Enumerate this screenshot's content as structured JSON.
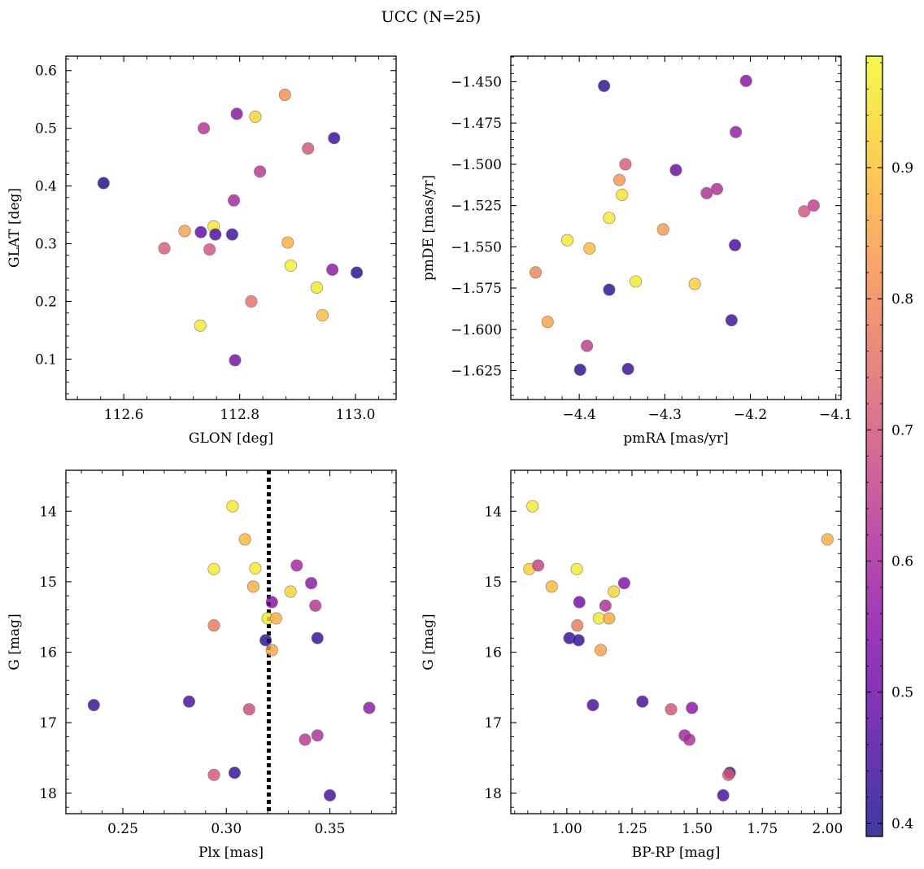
{
  "figure": {
    "title": "UCC (N=25)"
  },
  "colorbar": {
    "vmin": 0.39,
    "vmax": 0.985,
    "ticks": [
      "0.4",
      "0.5",
      "0.6",
      "0.7",
      "0.8",
      "0.9"
    ],
    "colormap": "plasma"
  },
  "chart_data": [
    {
      "type": "scatter",
      "xlabel": "GLON [deg]",
      "ylabel": "GLAT [deg]",
      "xlim": [
        112.5,
        113.07
      ],
      "ylim": [
        0.03,
        0.625
      ],
      "xticks": [
        "112.6",
        "112.8",
        "113.0"
      ],
      "yticks": [
        "0.1",
        "0.2",
        "0.3",
        "0.4",
        "0.5",
        "0.6"
      ],
      "points": [
        {
          "x": 112.565,
          "y": 0.405,
          "c": 0.4
        },
        {
          "x": 112.67,
          "y": 0.292,
          "c": 0.72
        },
        {
          "x": 112.705,
          "y": 0.322,
          "c": 0.85
        },
        {
          "x": 112.733,
          "y": 0.32,
          "c": 0.48
        },
        {
          "x": 112.732,
          "y": 0.158,
          "c": 0.96
        },
        {
          "x": 112.738,
          "y": 0.5,
          "c": 0.63
        },
        {
          "x": 112.748,
          "y": 0.29,
          "c": 0.7
        },
        {
          "x": 112.755,
          "y": 0.33,
          "c": 0.96
        },
        {
          "x": 112.758,
          "y": 0.316,
          "c": 0.46
        },
        {
          "x": 112.787,
          "y": 0.316,
          "c": 0.44
        },
        {
          "x": 112.79,
          "y": 0.375,
          "c": 0.6
        },
        {
          "x": 112.792,
          "y": 0.098,
          "c": 0.52
        },
        {
          "x": 112.795,
          "y": 0.525,
          "c": 0.55
        },
        {
          "x": 112.82,
          "y": 0.2,
          "c": 0.76
        },
        {
          "x": 112.827,
          "y": 0.52,
          "c": 0.93
        },
        {
          "x": 112.835,
          "y": 0.425,
          "c": 0.64
        },
        {
          "x": 112.878,
          "y": 0.558,
          "c": 0.82
        },
        {
          "x": 112.883,
          "y": 0.302,
          "c": 0.87
        },
        {
          "x": 112.888,
          "y": 0.262,
          "c": 0.97
        },
        {
          "x": 112.918,
          "y": 0.465,
          "c": 0.7
        },
        {
          "x": 112.933,
          "y": 0.224,
          "c": 0.96
        },
        {
          "x": 112.943,
          "y": 0.176,
          "c": 0.89
        },
        {
          "x": 112.96,
          "y": 0.255,
          "c": 0.56
        },
        {
          "x": 112.963,
          "y": 0.483,
          "c": 0.43
        },
        {
          "x": 113.002,
          "y": 0.25,
          "c": 0.41
        }
      ]
    },
    {
      "type": "scatter",
      "xlabel": "pmRA [mas/yr]",
      "ylabel": "pmDE [mas/yr]",
      "xlim": [
        -4.48,
        -4.094
      ],
      "ylim": [
        -1.6425,
        -1.4345
      ],
      "xticks": [
        "−4.4",
        "−4.3",
        "−4.2",
        "−4.1"
      ],
      "yticks": [
        "−1.450",
        "−1.475",
        "−1.500",
        "−1.525",
        "−1.550",
        "−1.575",
        "−1.600",
        "−1.625"
      ],
      "points": [
        {
          "x": -4.371,
          "y": -1.4525,
          "c": 0.42
        },
        {
          "x": -4.205,
          "y": -1.4495,
          "c": 0.55
        },
        {
          "x": -4.217,
          "y": -1.4805,
          "c": 0.57
        },
        {
          "x": -4.346,
          "y": -1.5,
          "c": 0.72
        },
        {
          "x": -4.287,
          "y": -1.5035,
          "c": 0.5
        },
        {
          "x": -4.353,
          "y": -1.5095,
          "c": 0.83
        },
        {
          "x": -4.35,
          "y": -1.5185,
          "c": 0.95
        },
        {
          "x": -4.251,
          "y": -1.5175,
          "c": 0.62
        },
        {
          "x": -4.239,
          "y": -1.515,
          "c": 0.62
        },
        {
          "x": -4.126,
          "y": -1.525,
          "c": 0.65
        },
        {
          "x": -4.137,
          "y": -1.5285,
          "c": 0.7
        },
        {
          "x": -4.365,
          "y": -1.5325,
          "c": 0.96
        },
        {
          "x": -4.302,
          "y": -1.5395,
          "c": 0.84
        },
        {
          "x": -4.414,
          "y": -1.546,
          "c": 0.96
        },
        {
          "x": -4.388,
          "y": -1.551,
          "c": 0.89
        },
        {
          "x": -4.218,
          "y": -1.549,
          "c": 0.45
        },
        {
          "x": -4.451,
          "y": -1.5655,
          "c": 0.8
        },
        {
          "x": -4.334,
          "y": -1.571,
          "c": 0.96
        },
        {
          "x": -4.265,
          "y": -1.5725,
          "c": 0.92
        },
        {
          "x": -4.365,
          "y": -1.576,
          "c": 0.42
        },
        {
          "x": -4.437,
          "y": -1.5955,
          "c": 0.85
        },
        {
          "x": -4.222,
          "y": -1.5945,
          "c": 0.44
        },
        {
          "x": -4.391,
          "y": -1.61,
          "c": 0.65
        },
        {
          "x": -4.399,
          "y": -1.6245,
          "c": 0.42
        },
        {
          "x": -4.343,
          "y": -1.624,
          "c": 0.43
        }
      ]
    },
    {
      "type": "scatter",
      "xlabel": "Plx [mas]",
      "ylabel": "G [mag]",
      "xlim": [
        0.2225,
        0.382
      ],
      "ylim": [
        18.29,
        13.42
      ],
      "y_inverted": true,
      "xticks": [
        "0.25",
        "0.30",
        "0.35"
      ],
      "yticks": [
        "14",
        "15",
        "16",
        "17",
        "18"
      ],
      "vline": 0.3205,
      "points": [
        {
          "x": 0.303,
          "y": 13.93,
          "c": 0.96
        },
        {
          "x": 0.309,
          "y": 14.4,
          "c": 0.88
        },
        {
          "x": 0.294,
          "y": 14.82,
          "c": 0.96
        },
        {
          "x": 0.314,
          "y": 14.81,
          "c": 0.96
        },
        {
          "x": 0.334,
          "y": 14.77,
          "c": 0.6
        },
        {
          "x": 0.313,
          "y": 15.07,
          "c": 0.87
        },
        {
          "x": 0.341,
          "y": 15.02,
          "c": 0.56
        },
        {
          "x": 0.331,
          "y": 15.14,
          "c": 0.93
        },
        {
          "x": 0.322,
          "y": 15.29,
          "c": 0.55
        },
        {
          "x": 0.343,
          "y": 15.34,
          "c": 0.63
        },
        {
          "x": 0.32,
          "y": 15.52,
          "c": 0.96
        },
        {
          "x": 0.324,
          "y": 15.52,
          "c": 0.87
        },
        {
          "x": 0.294,
          "y": 15.62,
          "c": 0.78
        },
        {
          "x": 0.319,
          "y": 15.83,
          "c": 0.42
        },
        {
          "x": 0.344,
          "y": 15.8,
          "c": 0.43
        },
        {
          "x": 0.322,
          "y": 15.97,
          "c": 0.86
        },
        {
          "x": 0.236,
          "y": 16.75,
          "c": 0.43
        },
        {
          "x": 0.282,
          "y": 16.7,
          "c": 0.45
        },
        {
          "x": 0.311,
          "y": 16.81,
          "c": 0.68
        },
        {
          "x": 0.369,
          "y": 16.79,
          "c": 0.56
        },
        {
          "x": 0.344,
          "y": 17.18,
          "c": 0.62
        },
        {
          "x": 0.338,
          "y": 17.24,
          "c": 0.64
        },
        {
          "x": 0.294,
          "y": 17.74,
          "c": 0.7
        },
        {
          "x": 0.304,
          "y": 17.71,
          "c": 0.43
        },
        {
          "x": 0.35,
          "y": 18.03,
          "c": 0.45
        }
      ]
    },
    {
      "type": "scatter",
      "xlabel": "BP-RP [mag]",
      "ylabel": "G [mag]",
      "xlim": [
        0.785,
        2.052
      ],
      "ylim": [
        18.29,
        13.42
      ],
      "y_inverted": true,
      "xticks": [
        "1.00",
        "1.25",
        "1.50",
        "1.75",
        "2.00"
      ],
      "yticks": [
        "14",
        "15",
        "16",
        "17",
        "18"
      ],
      "points": [
        {
          "x": 0.868,
          "y": 13.93,
          "c": 0.96
        },
        {
          "x": 2.0,
          "y": 14.4,
          "c": 0.87
        },
        {
          "x": 0.856,
          "y": 14.82,
          "c": 0.92
        },
        {
          "x": 0.89,
          "y": 14.77,
          "c": 0.66
        },
        {
          "x": 1.038,
          "y": 14.82,
          "c": 0.96
        },
        {
          "x": 0.942,
          "y": 15.07,
          "c": 0.89
        },
        {
          "x": 1.22,
          "y": 15.02,
          "c": 0.54
        },
        {
          "x": 1.18,
          "y": 15.14,
          "c": 0.93
        },
        {
          "x": 1.048,
          "y": 15.29,
          "c": 0.52
        },
        {
          "x": 1.148,
          "y": 15.34,
          "c": 0.62
        },
        {
          "x": 1.123,
          "y": 15.52,
          "c": 0.96
        },
        {
          "x": 1.162,
          "y": 15.52,
          "c": 0.86
        },
        {
          "x": 1.04,
          "y": 15.62,
          "c": 0.78
        },
        {
          "x": 1.01,
          "y": 15.8,
          "c": 0.43
        },
        {
          "x": 1.045,
          "y": 15.83,
          "c": 0.43
        },
        {
          "x": 1.13,
          "y": 15.97,
          "c": 0.85
        },
        {
          "x": 1.1,
          "y": 16.75,
          "c": 0.45
        },
        {
          "x": 1.29,
          "y": 16.7,
          "c": 0.45
        },
        {
          "x": 1.4,
          "y": 16.81,
          "c": 0.7
        },
        {
          "x": 1.48,
          "y": 16.79,
          "c": 0.56
        },
        {
          "x": 1.452,
          "y": 17.18,
          "c": 0.6
        },
        {
          "x": 1.47,
          "y": 17.24,
          "c": 0.62
        },
        {
          "x": 1.625,
          "y": 17.71,
          "c": 0.45
        },
        {
          "x": 1.62,
          "y": 17.74,
          "c": 0.72
        },
        {
          "x": 1.6,
          "y": 18.03,
          "c": 0.45
        }
      ]
    }
  ]
}
